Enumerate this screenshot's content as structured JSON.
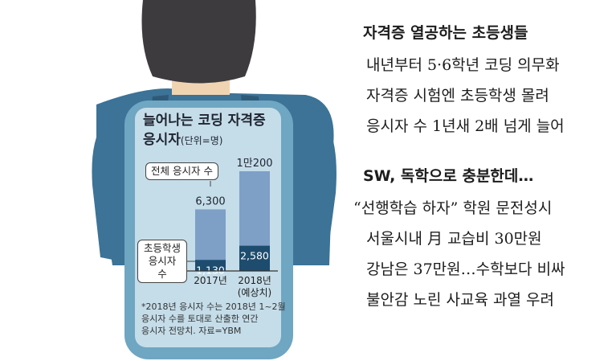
{
  "article": {
    "headline1": "자격증 열공하는 초등생들",
    "lines1": [
      "내년부터 5·6학년 코딩 의무화",
      "자격증 시험엔 초등학생 몰려",
      "응시자 수 1년새 2배 넘게 늘어"
    ],
    "headline2": "SW, 독학으로 충분한데…",
    "lines2": [
      "“선행학습 하자” 학원 문전성시",
      "서울시내 月 교습비 30만원",
      "강남은 37만원…수학보다 비싸",
      "불안감 노린 사교육 과열 우려"
    ]
  },
  "chart_data": {
    "type": "bar",
    "title_line1": "늘어나는 코딩 자격증",
    "title_line2": "응시자",
    "unit": "(단위=명)",
    "categories": [
      "2017년",
      "2018년\n(예상치)"
    ],
    "category_line1": [
      "2017년",
      "2018년"
    ],
    "category_line2": [
      "",
      "(예상치)"
    ],
    "series": [
      {
        "name": "전체 응시자 수",
        "values": [
          6300,
          10200
        ],
        "labels": [
          "6,300",
          "1만200"
        ]
      },
      {
        "name": "초등학생 응시자 수",
        "values": [
          1130,
          2580
        ],
        "labels": [
          "1,130",
          "2,580"
        ]
      }
    ],
    "ylim": [
      0,
      10200
    ],
    "footnote": [
      "*2018년 응시자 수는 2018년 1~2월",
      "응시자 수를 토대로 산출한 연간",
      "응시자 전망치. 자료=YBM"
    ],
    "colors": {
      "total_bar": "#7e9fc6",
      "elem_bar": "#1d4c6e",
      "panel": "#c5dde9",
      "backpack": "#6fa6c2",
      "shirt": "#3c7397",
      "hair": "#3e3b3f",
      "skin": "#f0d4b2"
    }
  }
}
